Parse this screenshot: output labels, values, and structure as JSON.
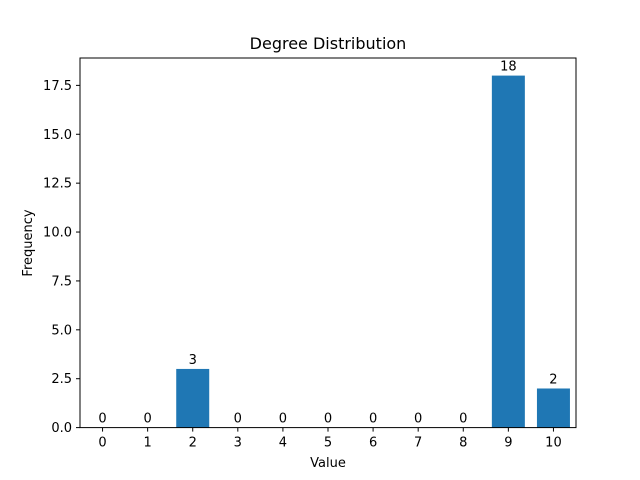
{
  "chart_data": {
    "type": "bar",
    "title": "Degree Distribution",
    "xlabel": "Value",
    "ylabel": "Frequency",
    "categories": [
      "0",
      "1",
      "2",
      "3",
      "4",
      "5",
      "6",
      "7",
      "8",
      "9",
      "10"
    ],
    "values": [
      0,
      0,
      3,
      0,
      0,
      0,
      0,
      0,
      0,
      18,
      2
    ],
    "ylim": [
      0,
      18.9
    ],
    "yticks": [
      "0.0",
      "2.5",
      "5.0",
      "7.5",
      "10.0",
      "12.5",
      "15.0",
      "17.5"
    ],
    "bar_color": "#1f77b4",
    "grid": false
  }
}
